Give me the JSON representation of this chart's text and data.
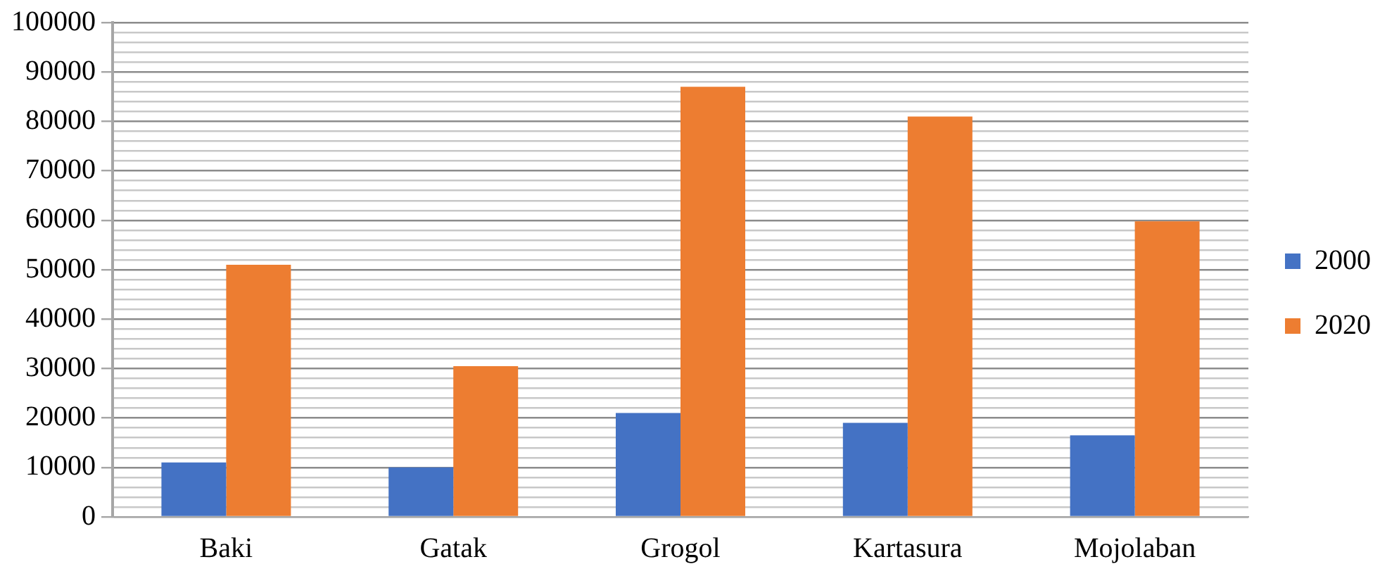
{
  "chart_data": {
    "type": "bar",
    "categories": [
      "Baki",
      "Gatak",
      "Grogol",
      "Kartasura",
      "Mojolaban"
    ],
    "series": [
      {
        "name": "2000",
        "color": "#4472c4",
        "values": [
          11000,
          10000,
          21000,
          19000,
          16500
        ]
      },
      {
        "name": "2020",
        "color": "#ed7d31",
        "values": [
          51000,
          30500,
          87000,
          81000,
          59800
        ]
      }
    ],
    "ylim": [
      0,
      100000
    ],
    "yticks": [
      0,
      {
        "value": 2000,
        "label": null
      },
      {
        "value": 4000,
        "label": null
      },
      {
        "value": 6000,
        "label": null
      },
      {
        "value": 8000,
        "label": null
      },
      10000,
      {
        "value": 12000,
        "label": null
      },
      {
        "value": 14000,
        "label": null
      },
      {
        "value": 16000,
        "label": null
      },
      {
        "value": 18000,
        "label": null
      },
      20000,
      {
        "value": 22000,
        "label": null
      },
      {
        "value": 24000,
        "label": null
      },
      {
        "value": 26000,
        "label": null
      },
      {
        "value": 28000,
        "label": null
      },
      30000,
      {
        "value": 32000,
        "label": null
      },
      {
        "value": 34000,
        "label": null
      },
      {
        "value": 36000,
        "label": null
      },
      {
        "value": 38000,
        "label": null
      },
      40000,
      {
        "value": 42000,
        "label": null
      },
      {
        "value": 44000,
        "label": null
      },
      {
        "value": 46000,
        "label": null
      },
      {
        "value": 48000,
        "label": null
      },
      50000,
      {
        "value": 52000,
        "label": null
      },
      {
        "value": 54000,
        "label": null
      },
      {
        "value": 56000,
        "label": null
      },
      {
        "value": 58000,
        "label": null
      },
      60000,
      {
        "value": 62000,
        "label": null
      },
      {
        "value": 64000,
        "label": null
      },
      {
        "value": 66000,
        "label": null
      },
      {
        "value": 68000,
        "label": null
      },
      70000,
      {
        "value": 72000,
        "label": null
      },
      {
        "value": 74000,
        "label": null
      },
      {
        "value": 76000,
        "label": null
      },
      {
        "value": 78000,
        "label": null
      },
      80000,
      {
        "value": 82000,
        "label": null
      },
      {
        "value": 84000,
        "label": null
      },
      {
        "value": 86000,
        "label": null
      },
      {
        "value": 88000,
        "label": null
      },
      90000,
      {
        "value": 92000,
        "label": null
      },
      {
        "value": 94000,
        "label": null
      },
      {
        "value": 96000,
        "label": null
      },
      {
        "value": 98000,
        "label": null
      },
      100000
    ],
    "grid": "y",
    "legend": "right"
  }
}
